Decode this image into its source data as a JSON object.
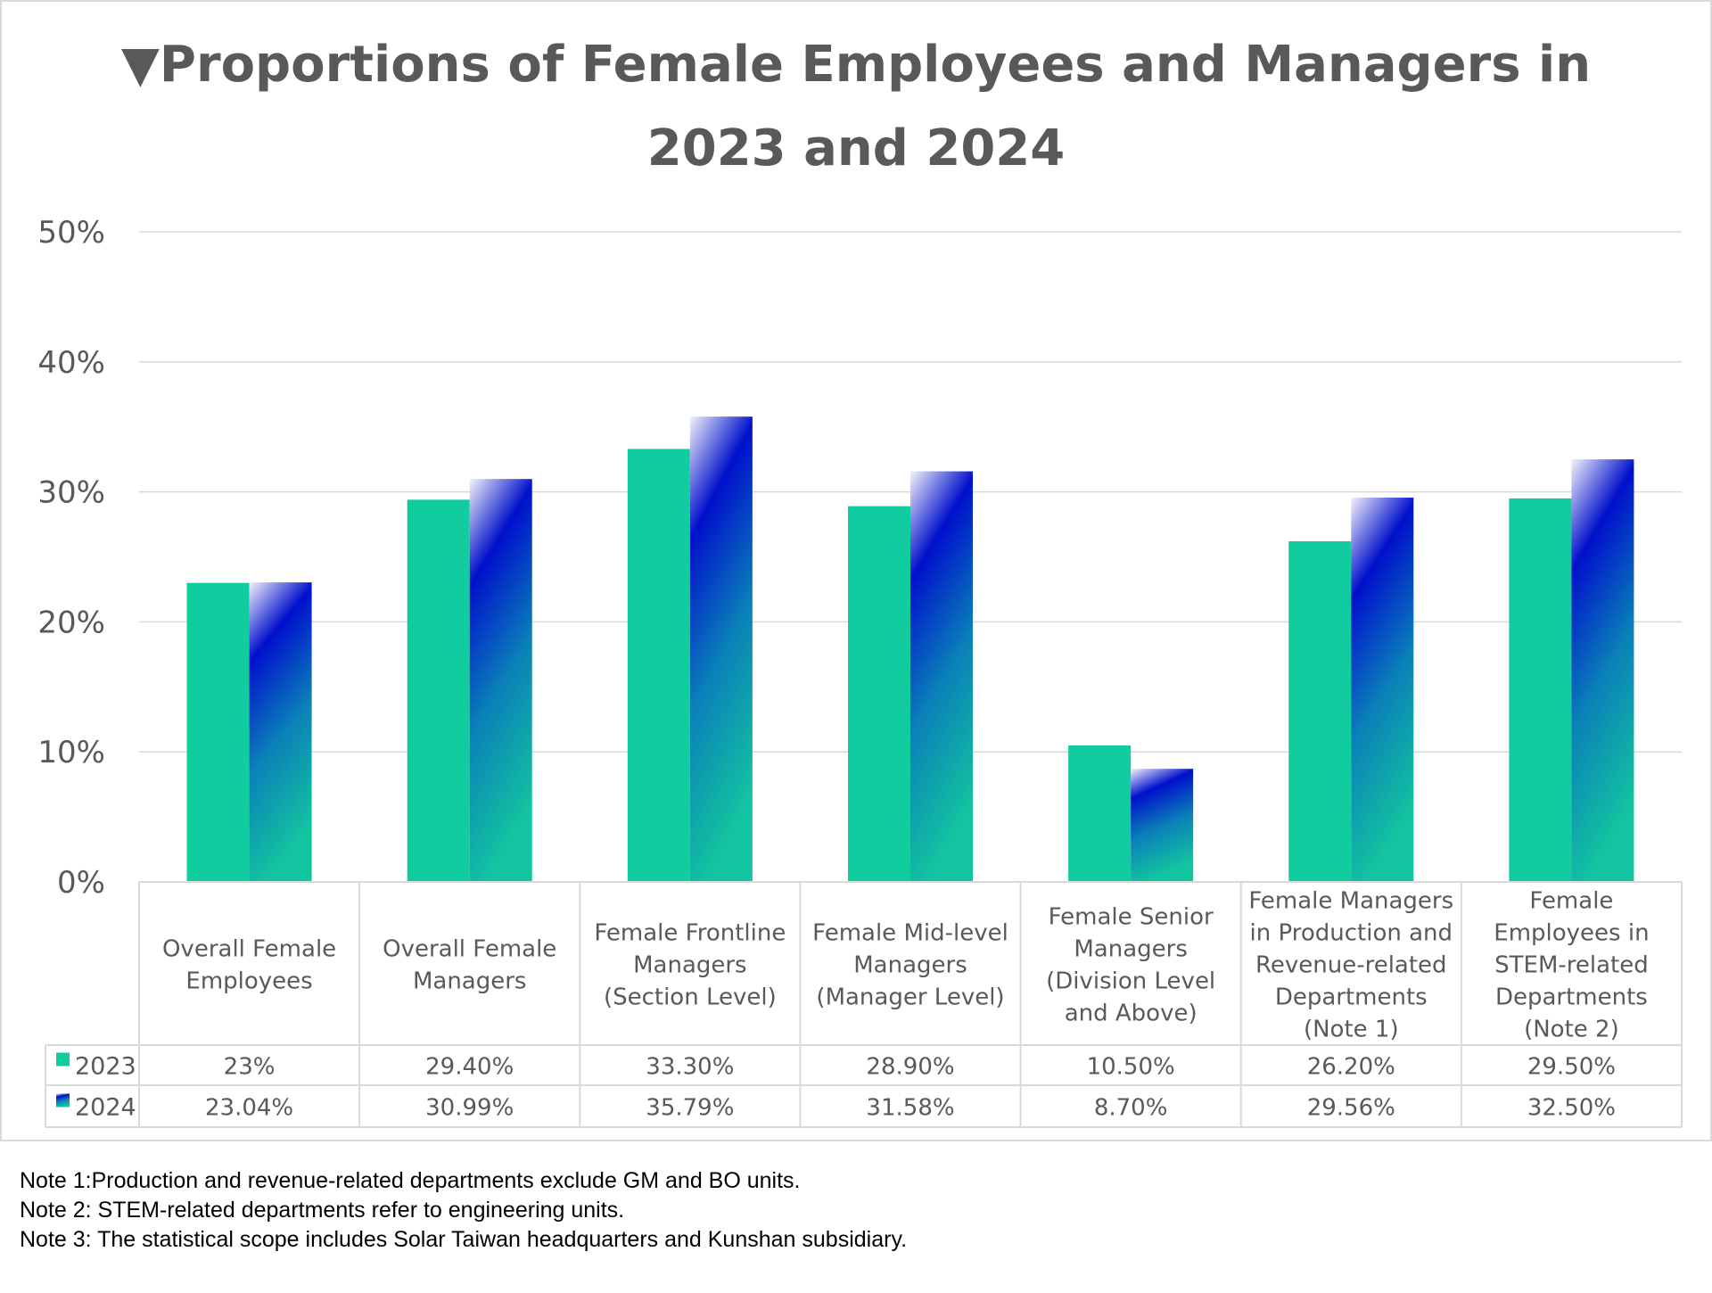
{
  "chart_data": {
    "type": "bar",
    "title_line1": "▼Proportions of Female Employees and Managers in",
    "title_line2": "2023 and 2024",
    "categories": [
      [
        "Overall Female",
        "Employees"
      ],
      [
        "Overall Female",
        "Managers"
      ],
      [
        "Female Frontline",
        "Managers",
        "(Section Level)"
      ],
      [
        "Female Mid-level",
        "Managers",
        "(Manager Level)"
      ],
      [
        "Female Senior",
        "Managers",
        "(Division Level",
        "and Above)"
      ],
      [
        "Female Managers",
        "in Production and",
        "Revenue-related",
        "Departments",
        "(Note 1)"
      ],
      [
        "Female",
        "Employees in",
        "STEM-related",
        "Departments",
        "(Note 2)"
      ]
    ],
    "series": [
      {
        "name": "2023",
        "values": [
          23,
          29.4,
          33.3,
          28.9,
          10.5,
          26.2,
          29.5
        ],
        "labels": [
          "23%",
          "29.40%",
          "33.30%",
          "28.90%",
          "10.50%",
          "26.20%",
          "29.50%"
        ],
        "color": "#10CC9F"
      },
      {
        "name": "2024",
        "values": [
          23.04,
          30.99,
          35.79,
          31.58,
          8.7,
          29.56,
          32.5
        ],
        "labels": [
          "23.04%",
          "30.99%",
          "35.79%",
          "31.58%",
          "8.70%",
          "29.56%",
          "32.50%"
        ],
        "color_gradient": [
          "#F2F2FA",
          "#0010CC",
          "#0A80B8",
          "#12C4A0"
        ]
      }
    ],
    "ylim": [
      0,
      50
    ],
    "yticks": [
      "0%",
      "10%",
      "20%",
      "30%",
      "40%",
      "50%"
    ],
    "grid": true,
    "legend": "data-table"
  },
  "notes": [
    "Note 1:Production and revenue-related departments exclude GM and BO units.",
    "Note 2: STEM-related departments refer to engineering units.",
    "Note 3: The statistical scope includes Solar Taiwan headquarters and Kunshan subsidiary."
  ]
}
